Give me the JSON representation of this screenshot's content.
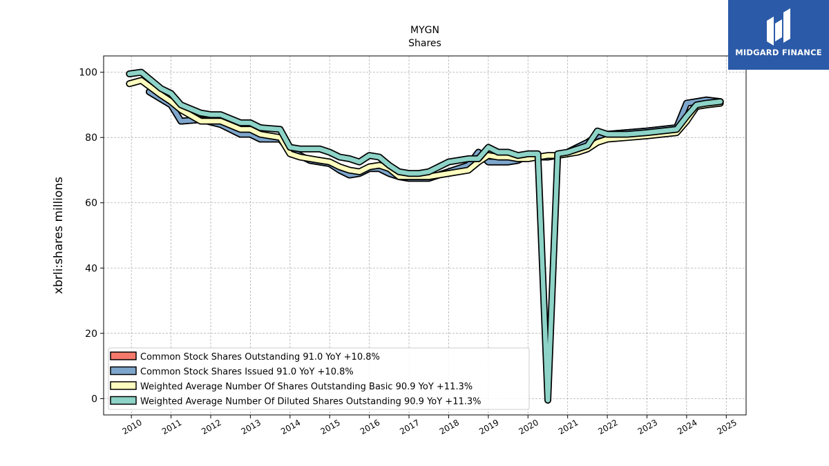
{
  "brand": {
    "name": "MIDGARD FINANCE",
    "bg_color": "#2b5aa8",
    "icon": "midgard-logo-icon"
  },
  "chart_data": {
    "type": "line",
    "title": "MYGN",
    "subtitle": "Shares",
    "xlabel": "",
    "ylabel": "xbrli:shares millions",
    "xlim": [
      2009.3,
      2025.5
    ],
    "ylim": [
      -5,
      105
    ],
    "yticks": [
      0,
      20,
      40,
      60,
      80,
      100
    ],
    "xticks": [
      "2010",
      "2011",
      "2012",
      "2013",
      "2014",
      "2015",
      "2016",
      "2017",
      "2018",
      "2019",
      "2020",
      "2021",
      "2022",
      "2023",
      "2024",
      "2025"
    ],
    "grid": true,
    "legend_position": "lower-left",
    "series": [
      {
        "name": "Common Stock Shares Outstanding  91.0 YoY +10.8%",
        "color": "#f4796b",
        "x": [
          2010.45,
          2011.0,
          2011.25,
          2011.75,
          2012.25,
          2012.75,
          2013.0,
          2013.25,
          2013.75,
          2014.0,
          2014.5,
          2015.0,
          2015.25,
          2015.5,
          2015.75,
          2016.0,
          2016.25,
          2016.5,
          2016.75,
          2017.0,
          2017.5,
          2018.0,
          2018.5,
          2018.75,
          2019.0,
          2019.25,
          2019.5,
          2019.75,
          2020.0,
          2020.25,
          2020.5,
          2020.75,
          2021.0,
          2021.25,
          2021.5,
          2021.75,
          2022.0,
          2022.5,
          2023.0,
          2023.75,
          2024.0,
          2024.25,
          2024.5,
          2024.85
        ],
        "y": [
          94.0,
          90.0,
          85.0,
          85.5,
          84.0,
          81.0,
          81.0,
          79.5,
          79.5,
          76.0,
          73.0,
          72.0,
          70.0,
          68.5,
          69.0,
          70.5,
          70.5,
          69.0,
          68.0,
          67.5,
          67.5,
          69.5,
          71.5,
          75.5,
          72.5,
          72.5,
          72.5,
          73.0,
          74.5,
          74.0,
          74.0,
          74.5,
          75.5,
          77.0,
          78.5,
          80.5,
          81.0,
          81.5,
          82.0,
          83.0,
          90.5,
          91.0,
          91.5,
          91.0
        ]
      },
      {
        "name": "Common Stock Shares Issued  91.0 YoY +10.8%",
        "color": "#7ea6cc",
        "x": [
          2010.45,
          2011.0,
          2011.25,
          2011.75,
          2012.25,
          2012.75,
          2013.0,
          2013.25,
          2013.75,
          2014.0,
          2014.5,
          2015.0,
          2015.25,
          2015.5,
          2015.75,
          2016.0,
          2016.25,
          2016.5,
          2016.75,
          2017.0,
          2017.5,
          2018.0,
          2018.5,
          2018.75,
          2019.0,
          2019.25,
          2019.5,
          2019.75,
          2020.0,
          2020.25,
          2020.5,
          2020.75,
          2021.0,
          2021.25,
          2021.5,
          2021.75,
          2022.0,
          2022.5,
          2023.0,
          2023.75,
          2024.0,
          2024.25,
          2024.5,
          2024.85
        ],
        "y": [
          94.0,
          90.0,
          85.0,
          85.5,
          84.0,
          81.0,
          81.0,
          79.5,
          79.5,
          76.0,
          73.0,
          72.0,
          70.0,
          68.5,
          69.0,
          70.5,
          70.5,
          69.0,
          68.0,
          67.5,
          67.5,
          69.5,
          71.5,
          75.5,
          72.5,
          72.5,
          72.5,
          73.0,
          74.5,
          74.0,
          74.0,
          74.5,
          75.5,
          77.0,
          78.5,
          80.5,
          81.0,
          81.5,
          82.0,
          83.0,
          90.5,
          91.0,
          91.5,
          91.0
        ]
      },
      {
        "name": "Weighted Average Number Of Shares Outstanding Basic  90.9 YoY +11.3%",
        "color": "#fdfdbf",
        "x": [
          2009.95,
          2010.25,
          2010.75,
          2011.0,
          2011.25,
          2011.75,
          2012.0,
          2012.25,
          2012.75,
          2013.0,
          2013.25,
          2013.75,
          2014.0,
          2014.25,
          2014.75,
          2015.0,
          2015.25,
          2015.5,
          2015.75,
          2016.0,
          2016.25,
          2016.5,
          2016.75,
          2017.0,
          2017.5,
          2018.0,
          2018.5,
          2018.75,
          2019.0,
          2019.25,
          2019.5,
          2019.75,
          2020.0,
          2020.25,
          2020.5,
          2020.75,
          2021.0,
          2021.25,
          2021.5,
          2021.75,
          2022.0,
          2022.5,
          2023.0,
          2023.75,
          2024.0,
          2024.25,
          2024.5,
          2024.85
        ],
        "y": [
          96.5,
          97.5,
          93.0,
          91.0,
          88.5,
          85.0,
          85.0,
          85.0,
          82.5,
          82.5,
          81.0,
          80.0,
          75.0,
          74.0,
          73.0,
          72.5,
          71.0,
          70.0,
          69.5,
          71.0,
          71.5,
          70.5,
          68.0,
          68.0,
          68.0,
          69.0,
          70.0,
          72.5,
          74.5,
          74.0,
          74.0,
          73.5,
          73.5,
          74.0,
          74.5,
          74.5,
          75.0,
          75.5,
          76.5,
          78.5,
          79.5,
          80.0,
          80.5,
          81.5,
          85.0,
          89.5,
          90.0,
          90.5
        ]
      },
      {
        "name": "Weighted Average Number Of Diluted Shares Outstanding  90.9 YoY +11.3%",
        "color": "#8dd3c7",
        "x": [
          2009.95,
          2010.25,
          2010.75,
          2011.0,
          2011.25,
          2011.75,
          2012.0,
          2012.25,
          2012.75,
          2013.0,
          2013.25,
          2013.75,
          2014.0,
          2014.25,
          2014.75,
          2015.0,
          2015.25,
          2015.5,
          2015.75,
          2016.0,
          2016.25,
          2016.5,
          2016.75,
          2017.0,
          2017.25,
          2017.5,
          2018.0,
          2018.5,
          2018.75,
          2019.0,
          2019.25,
          2019.5,
          2019.75,
          2020.0,
          2020.25,
          2020.5,
          2020.75,
          2021.0,
          2021.25,
          2021.5,
          2021.75,
          2022.0,
          2022.5,
          2023.0,
          2023.75,
          2024.0,
          2024.25,
          2024.5,
          2024.85
        ],
        "y": [
          99.5,
          100.0,
          95.0,
          93.5,
          90.0,
          87.5,
          87.0,
          87.0,
          84.5,
          84.5,
          83.0,
          82.5,
          77.0,
          76.5,
          76.5,
          75.5,
          74.0,
          73.5,
          72.5,
          74.5,
          74.0,
          71.5,
          69.5,
          69.0,
          69.0,
          69.5,
          72.5,
          73.5,
          73.5,
          77.0,
          75.5,
          75.5,
          74.5,
          75.0,
          75.0,
          -0.5,
          75.0,
          75.5,
          76.5,
          77.5,
          82.0,
          81.0,
          81.0,
          81.5,
          82.5,
          86.5,
          90.0,
          90.5,
          91.0
        ]
      }
    ]
  }
}
